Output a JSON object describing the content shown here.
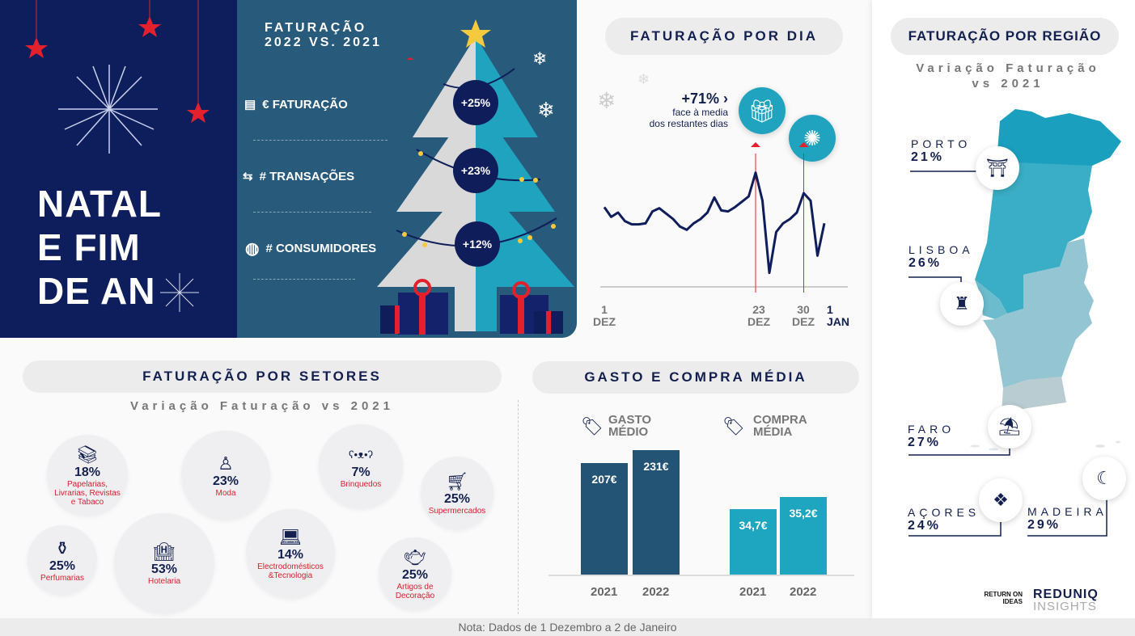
{
  "hero": {
    "title_lines": [
      "NATAL",
      "E FIM",
      "DE AN"
    ]
  },
  "tree_panel": {
    "title_lines": [
      "FATURAÇÃO",
      "2022 VS. 2021"
    ],
    "metrics": [
      {
        "icon": "cash-register-icon",
        "label": "€ FATURAÇÃO",
        "value": "+25%"
      },
      {
        "icon": "arrows-exchange-icon",
        "label": "# TRANSAÇÕES",
        "value": "+23%"
      },
      {
        "icon": "globe-icon",
        "label": "# CONSUMIDORES",
        "value": "+12%"
      }
    ]
  },
  "daily": {
    "title": "FATURAÇÃO POR DIA",
    "callout_value": "+71% ›",
    "callout_text_1": "face à media",
    "callout_text_2": "dos restantes dias",
    "ticks": [
      {
        "d": "1",
        "m": "DEZ"
      },
      {
        "d": "23",
        "m": "DEZ"
      },
      {
        "d": "30",
        "m": "DEZ"
      },
      {
        "d": "1",
        "m": "JAN"
      }
    ]
  },
  "sectors": {
    "title": "FATURAÇÃO POR SETORES",
    "subtitle": "Variação Faturação vs 2021",
    "items": [
      {
        "value": "18%",
        "label": "Papelarias, Livrarias, Revistas e Tabaco",
        "icon": "books-icon"
      },
      {
        "value": "23%",
        "label": "Moda",
        "icon": "mannequin-icon"
      },
      {
        "value": "7%",
        "label": "Brinquedos",
        "icon": "teddy-bear-icon"
      },
      {
        "value": "25%",
        "label": "Supermercados",
        "icon": "shopping-cart-icon"
      },
      {
        "value": "25%",
        "label": "Perfumarias",
        "icon": "perfume-icon"
      },
      {
        "value": "53%",
        "label": "Hotelaria",
        "icon": "hotel-icon"
      },
      {
        "value": "14%",
        "label": "Electrodomésticos &Tecnologia",
        "icon": "laptop-icon"
      },
      {
        "value": "25%",
        "label": "Artigos de Decoração",
        "icon": "teapot-icon"
      }
    ]
  },
  "avg": {
    "title": "GASTO E COMPRA MÉDIA",
    "gasto_label_1": "GASTO",
    "gasto_label_2": "MÉDIO",
    "compra_label_1": "COMPRA",
    "compra_label_2": "MÉDIA"
  },
  "region": {
    "title": "FATURAÇÃO POR REGIÃO",
    "subtitle_1": "Variação Faturação",
    "subtitle_2": "vs 2021",
    "items": [
      {
        "name": "PORTO",
        "value": "21%"
      },
      {
        "name": "LISBOA",
        "value": "26%"
      },
      {
        "name": "FARO",
        "value": "27%"
      },
      {
        "name": "AÇORES",
        "value": "24%"
      },
      {
        "name": "MADEIRA",
        "value": "29%"
      }
    ],
    "colors": {
      "north": "#1b9fbf",
      "centre": "#3aaec6",
      "lisbon": "#6cbccd",
      "south": "#93c6d2",
      "algarve": "#b8ccd2"
    }
  },
  "logos": {
    "a": "RETURN ON IDEAS",
    "b1": "REDUNIQ",
    "b2": "INSIGHTS"
  },
  "footer": {
    "note": "Nota: Dados de 1 Dezembro a 2 de Janeiro"
  },
  "chart_data": [
    {
      "type": "line",
      "title": "FATURAÇÃO POR DIA",
      "xlabel": "",
      "ylabel": "",
      "x_start": "1 DEZ",
      "x_end": "2 JAN",
      "x_ticks": [
        "1 DEZ",
        "23 DEZ",
        "30 DEZ",
        "1 JAN"
      ],
      "highlighted": [
        "23 DEZ",
        "30 DEZ"
      ],
      "values_relative_index": [
        74,
        65,
        69,
        61,
        58,
        58,
        59,
        70,
        73,
        68,
        63,
        56,
        53,
        59,
        63,
        69,
        83,
        71,
        70,
        74,
        79,
        84,
        106,
        80,
        13,
        51,
        59,
        63,
        69,
        87,
        80,
        29,
        59
      ]
    },
    {
      "type": "bar",
      "title": "GASTO MÉDIO",
      "categories": [
        "2021",
        "2022"
      ],
      "values": [
        207,
        231
      ],
      "unit": "€",
      "labels": [
        "207€",
        "231€"
      ],
      "color": "#235476"
    },
    {
      "type": "bar",
      "title": "COMPRA MÉDIA",
      "categories": [
        "2021",
        "2022"
      ],
      "values": [
        34.7,
        35.2
      ],
      "unit": "€",
      "labels": [
        "34,7€",
        "35,2€"
      ],
      "color": "#1ea5c0"
    }
  ]
}
